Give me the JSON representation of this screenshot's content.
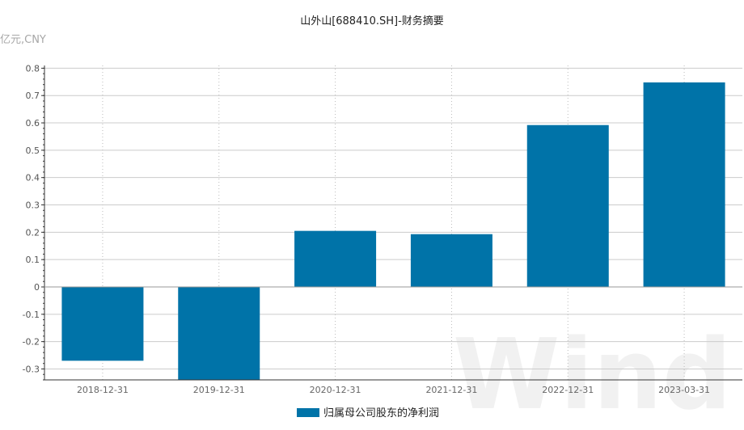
{
  "chart_data": {
    "type": "bar",
    "title": "山外山[688410.SH]-财务摘要",
    "unit_label": "亿元,CNY",
    "categories": [
      "2018-12-31",
      "2019-12-31",
      "2020-12-31",
      "2021-12-31",
      "2022-12-31",
      "2023-03-31"
    ],
    "series": [
      {
        "name": "归属母公司股东的净利润",
        "values": [
          -0.27,
          -0.345,
          0.205,
          0.193,
          0.592,
          0.748
        ]
      }
    ],
    "y_ticks": [
      "0.8",
      "0.7",
      "0.6",
      "0.5",
      "0.4",
      "0.3",
      "0.2",
      "0.1",
      "0",
      "-0.1",
      "-0.2",
      "-0.3"
    ],
    "ylim": [
      -0.34,
      0.81
    ],
    "grid": true,
    "legend_position": "bottom-center",
    "watermark": "Wind",
    "colors": {
      "bar": "#0073a8",
      "grid": "#cccccc",
      "axis": "#333333"
    }
  }
}
